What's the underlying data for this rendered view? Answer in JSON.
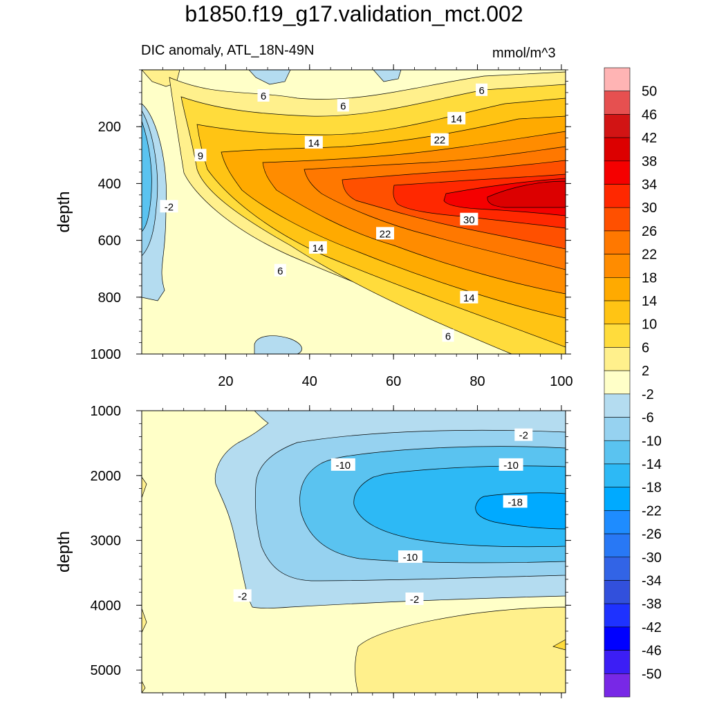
{
  "title": "b1850.f19_g17.validation_mct.002",
  "subtitle": "DIC anomaly, ATL_18N-49N",
  "units": "mmol/m^3",
  "chart_data": [
    {
      "type": "contour",
      "panel": "upper",
      "title": "DIC anomaly, ATL_18N-49N",
      "units": "mmol/m^3",
      "xlabel": "",
      "ylabel": "depth",
      "xlim": [
        0,
        101
      ],
      "ylim": [
        1000,
        0
      ],
      "xticks": [
        20,
        40,
        60,
        80,
        100
      ],
      "yticks": [
        200,
        400,
        600,
        800,
        1000
      ],
      "max_value_approx": 34,
      "min_value_approx": -12,
      "contour_labels": [
        {
          "text": "6",
          "x": 29,
          "y": 90
        },
        {
          "text": "6",
          "x": 48,
          "y": 125
        },
        {
          "text": "6",
          "x": 81,
          "y": 70
        },
        {
          "text": "14",
          "x": 41,
          "y": 255
        },
        {
          "text": "14",
          "x": 75,
          "y": 170
        },
        {
          "text": "22",
          "x": 71,
          "y": 245
        },
        {
          "text": "9",
          "x": 14,
          "y": 300
        },
        {
          "text": "-2",
          "x": 6.5,
          "y": 480
        },
        {
          "text": "14",
          "x": 42,
          "y": 625
        },
        {
          "text": "22",
          "x": 58,
          "y": 575
        },
        {
          "text": "30",
          "x": 78,
          "y": 525
        },
        {
          "text": "6",
          "x": 33,
          "y": 705
        },
        {
          "text": "14",
          "x": 78,
          "y": 800
        },
        {
          "text": "6",
          "x": 73,
          "y": 935
        }
      ]
    },
    {
      "type": "contour",
      "panel": "lower",
      "xlabel": "",
      "ylabel": "depth",
      "xlim": [
        0,
        101
      ],
      "ylim": [
        5350,
        1000
      ],
      "yticks": [
        1000,
        2000,
        3000,
        4000,
        5000
      ],
      "max_value_approx": 4,
      "min_value_approx": -19,
      "contour_labels": [
        {
          "text": "-2",
          "x": 91,
          "y": 1370
        },
        {
          "text": "-10",
          "x": 48,
          "y": 1830
        },
        {
          "text": "-10",
          "x": 88,
          "y": 1830
        },
        {
          "text": "-18",
          "x": 89,
          "y": 2400
        },
        {
          "text": "-10",
          "x": 64,
          "y": 3250
        },
        {
          "text": "-2",
          "x": 65,
          "y": 3900
        },
        {
          "text": "-2",
          "x": 24,
          "y": 3850
        }
      ]
    }
  ],
  "colorbar": {
    "labels": [
      "50",
      "46",
      "42",
      "38",
      "34",
      "30",
      "26",
      "22",
      "18",
      "14",
      "10",
      "6",
      "2",
      "-2",
      "-6",
      "-10",
      "-14",
      "-18",
      "-22",
      "-26",
      "-30",
      "-34",
      "-38",
      "-42",
      "-46",
      "-50"
    ],
    "colors": [
      "#FFB4B4",
      "#E65050",
      "#D21414",
      "#DC0000",
      "#F50000",
      "#FF2800",
      "#FF5000",
      "#FF7800",
      "#FF8C00",
      "#FFAA00",
      "#FFC414",
      "#FFDC3C",
      "#FFF08C",
      "#FFFFC8",
      "#B4DCF0",
      "#96D2F0",
      "#5AC3F0",
      "#2DB9F5",
      "#00AAFF",
      "#1E8CFF",
      "#2878F5",
      "#3264E6",
      "#3250DC",
      "#1E32FF",
      "#0000FF",
      "#3C1EF5",
      "#7828E6"
    ]
  }
}
